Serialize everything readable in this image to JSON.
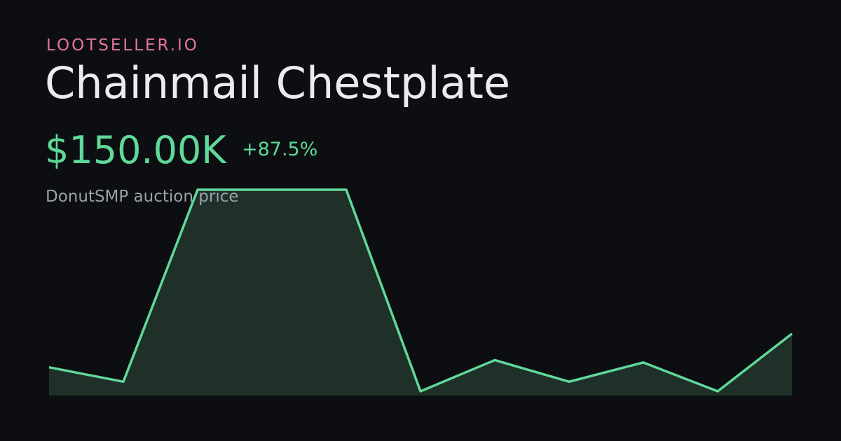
{
  "chart_data": {
    "type": "area",
    "brand": "LOOTSELLER.IO",
    "title": "Chainmail Chestplate",
    "price": "$150.00K",
    "change": "+87.5%",
    "subtitle": "DonutSMP auction price",
    "color": "#5fd99a",
    "fill": "#1f3029",
    "values": [
      80,
      50,
      450,
      450,
      450,
      30,
      95,
      50,
      90,
      30,
      150
    ]
  }
}
